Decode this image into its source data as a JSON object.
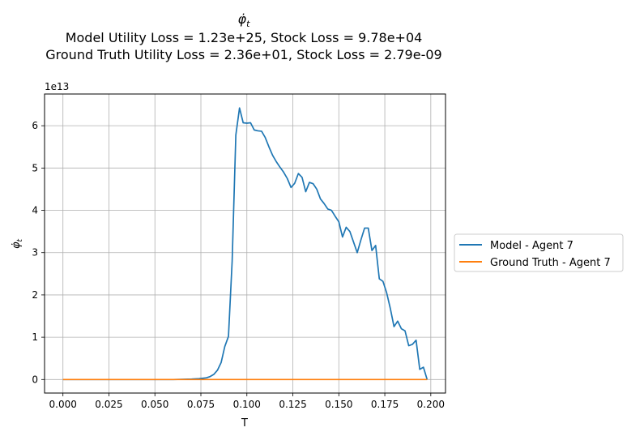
{
  "chart_data": {
    "type": "line",
    "title_symbol": "φ̇",
    "title_symbol_sub": "t",
    "title_lines": [
      "Model Utility Loss = 1.23e+25, Stock Loss = 9.78e+04",
      "Ground Truth Utility Loss = 2.36e+01, Stock Loss = 2.79e-09"
    ],
    "xlabel": "T",
    "ylabel_symbol": "φ̇",
    "ylabel_sub": "t",
    "y_offset_label": "1e13",
    "xlim": [
      -0.01,
      0.208
    ],
    "ylim": [
      -0.32,
      6.75
    ],
    "x_ticks": [
      0.0,
      0.025,
      0.05,
      0.075,
      0.1,
      0.125,
      0.15,
      0.175,
      0.2
    ],
    "x_tick_labels": [
      "0.000",
      "0.025",
      "0.050",
      "0.075",
      "0.100",
      "0.125",
      "0.150",
      "0.175",
      "0.200"
    ],
    "y_ticks": [
      0,
      1,
      2,
      3,
      4,
      5,
      6
    ],
    "y_tick_labels": [
      "0",
      "1",
      "2",
      "3",
      "4",
      "5",
      "6"
    ],
    "grid": true,
    "legend_position": "right-outside",
    "series": [
      {
        "name": "Model - Agent 7",
        "color": "#1f77b4",
        "x": [
          0.0,
          0.02,
          0.04,
          0.06,
          0.07,
          0.074,
          0.078,
          0.08,
          0.082,
          0.084,
          0.086,
          0.088,
          0.09,
          0.092,
          0.094,
          0.096,
          0.098,
          0.1,
          0.102,
          0.104,
          0.106,
          0.108,
          0.11,
          0.112,
          0.114,
          0.116,
          0.118,
          0.12,
          0.122,
          0.124,
          0.126,
          0.128,
          0.13,
          0.132,
          0.134,
          0.136,
          0.138,
          0.14,
          0.142,
          0.144,
          0.146,
          0.148,
          0.15,
          0.152,
          0.154,
          0.156,
          0.158,
          0.16,
          0.162,
          0.164,
          0.166,
          0.168,
          0.17,
          0.172,
          0.174,
          0.176,
          0.178,
          0.18,
          0.182,
          0.184,
          0.186,
          0.188,
          0.19,
          0.192,
          0.194,
          0.196,
          0.198
        ],
        "y": [
          0.0,
          0.0,
          0.0,
          0.0,
          0.01,
          0.02,
          0.04,
          0.07,
          0.12,
          0.22,
          0.4,
          0.78,
          1.02,
          2.8,
          5.78,
          6.42,
          6.07,
          6.06,
          6.07,
          5.9,
          5.88,
          5.87,
          5.72,
          5.5,
          5.3,
          5.15,
          5.02,
          4.9,
          4.75,
          4.54,
          4.64,
          4.87,
          4.78,
          4.44,
          4.66,
          4.63,
          4.5,
          4.27,
          4.16,
          4.03,
          4.0,
          3.86,
          3.73,
          3.37,
          3.6,
          3.5,
          3.25,
          3.0,
          3.3,
          3.58,
          3.58,
          3.05,
          3.17,
          2.38,
          2.32,
          2.05,
          1.68,
          1.25,
          1.38,
          1.2,
          1.15,
          0.8,
          0.83,
          0.93,
          0.24,
          0.29,
          0.0
        ]
      },
      {
        "name": "Ground Truth - Agent 7",
        "color": "#ff7f0e",
        "x": [
          0.0,
          0.198
        ],
        "y": [
          0.0,
          0.0
        ]
      }
    ]
  }
}
